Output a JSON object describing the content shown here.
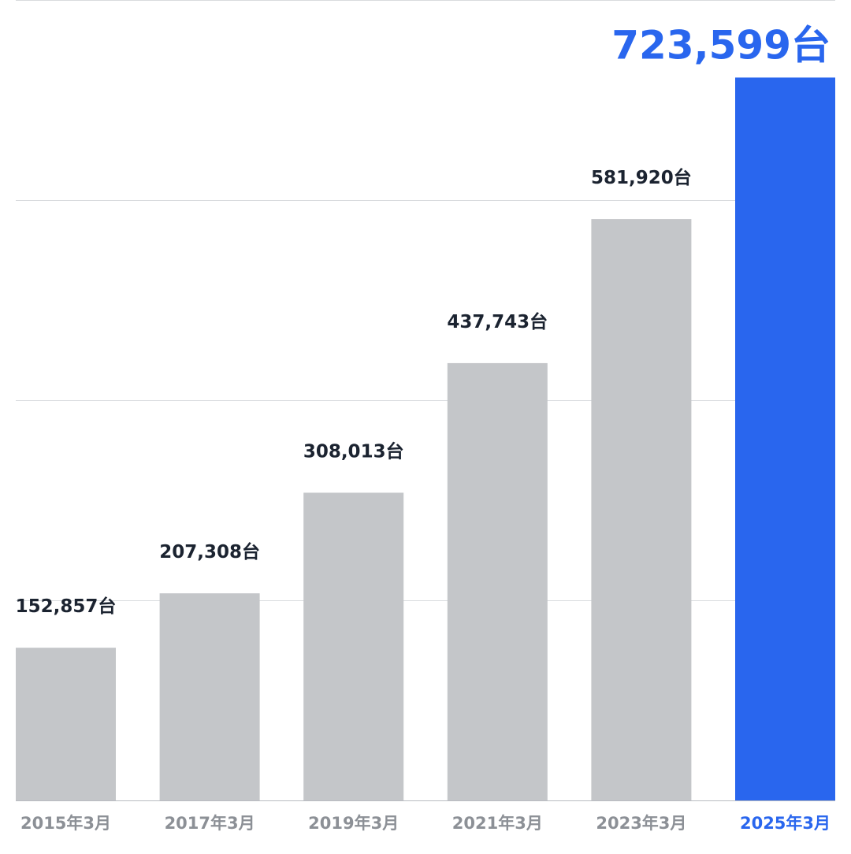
{
  "chart_data": {
    "type": "bar",
    "categories": [
      "2015年3月",
      "2017年3月",
      "2019年3月",
      "2021年3月",
      "2023年3月",
      "2025年3月"
    ],
    "values": [
      152857,
      207308,
      308013,
      437743,
      581920,
      723599
    ],
    "value_labels": [
      "152,857台",
      "207,308台",
      "308,013台",
      "437,743台",
      "581,920台",
      "723,599台"
    ],
    "highlight_index": 5,
    "title": "",
    "xlabel": "",
    "ylabel": "",
    "ylim": [
      0,
      720000
    ],
    "grid": true,
    "legend": "none"
  },
  "colors": {
    "bar_default": "#c4c6c9",
    "bar_highlight": "#2966ee",
    "value_label_default": "#1b2330",
    "value_label_highlight": "#2966ee",
    "category_label_default": "#8c9096",
    "category_label_highlight": "#2966ee",
    "gridline": "#d9dbde",
    "baseline": "#b8bbc0"
  }
}
